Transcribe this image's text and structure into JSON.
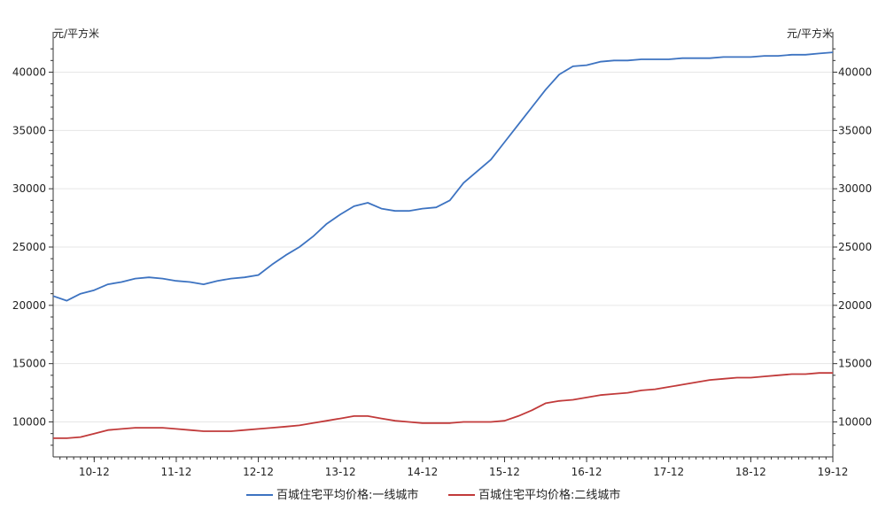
{
  "chart_data": {
    "type": "line",
    "y_unit_left": "元/平方米",
    "y_unit_right": "元/平方米",
    "ylim": [
      7000,
      43000
    ],
    "y_ticks": [
      10000,
      15000,
      20000,
      25000,
      30000,
      35000,
      40000
    ],
    "y_tick_labels": [
      "10000",
      "15000",
      "20000",
      "25000",
      "30000",
      "35000",
      "40000"
    ],
    "xlim": [
      "2010-06",
      "2019-12"
    ],
    "x_ticks": [
      "2010-12",
      "2011-12",
      "2012-12",
      "2013-12",
      "2014-12",
      "2015-12",
      "2016-12",
      "2017-12",
      "2018-12",
      "2019-12"
    ],
    "x_tick_labels": [
      "10-12",
      "11-12",
      "12-12",
      "13-12",
      "14-12",
      "15-12",
      "16-12",
      "17-12",
      "18-12",
      "19-12"
    ],
    "grid": "horizontal",
    "legend_position": "bottom",
    "series": [
      {
        "name": "百城住宅平均价格:一线城市",
        "color": "#3d73c1",
        "x": [
          "2010-06",
          "2010-08",
          "2010-09",
          "2010-10",
          "2010-12",
          "2011-02",
          "2011-04",
          "2011-06",
          "2011-08",
          "2011-10",
          "2011-12",
          "2012-02",
          "2012-04",
          "2012-06",
          "2012-08",
          "2012-10",
          "2012-12",
          "2013-02",
          "2013-04",
          "2013-06",
          "2013-08",
          "2013-10",
          "2013-12",
          "2014-02",
          "2014-04",
          "2014-06",
          "2014-08",
          "2014-10",
          "2014-12",
          "2015-02",
          "2015-04",
          "2015-06",
          "2015-08",
          "2015-10",
          "2015-12",
          "2016-02",
          "2016-04",
          "2016-06",
          "2016-08",
          "2016-10",
          "2016-12",
          "2017-02",
          "2017-04",
          "2017-06",
          "2017-08",
          "2017-10",
          "2017-12",
          "2018-02",
          "2018-04",
          "2018-06",
          "2018-08",
          "2018-10",
          "2018-12",
          "2019-02",
          "2019-04",
          "2019-06",
          "2019-08",
          "2019-10",
          "2019-12"
        ],
        "values": [
          20800,
          20400,
          20700,
          21000,
          21300,
          21800,
          22000,
          22300,
          22400,
          22300,
          22100,
          22000,
          21800,
          22100,
          22300,
          22400,
          22600,
          23500,
          24300,
          25000,
          25900,
          27000,
          27800,
          28500,
          28800,
          28300,
          28100,
          28100,
          28300,
          28400,
          29000,
          30500,
          31500,
          32500,
          34000,
          35500,
          37000,
          38500,
          39800,
          40500,
          40600,
          40900,
          41000,
          41000,
          41100,
          41100,
          41100,
          41200,
          41200,
          41200,
          41300,
          41300,
          41300,
          41400,
          41400,
          41500,
          41500,
          41600,
          41700
        ]
      },
      {
        "name": "百城住宅平均价格:二线城市",
        "color": "#c13a3a",
        "x": [
          "2010-06",
          "2010-08",
          "2010-10",
          "2010-12",
          "2011-02",
          "2011-04",
          "2011-06",
          "2011-08",
          "2011-10",
          "2011-12",
          "2012-02",
          "2012-04",
          "2012-06",
          "2012-08",
          "2012-10",
          "2012-12",
          "2013-02",
          "2013-04",
          "2013-06",
          "2013-08",
          "2013-10",
          "2013-12",
          "2014-02",
          "2014-04",
          "2014-06",
          "2014-08",
          "2014-10",
          "2014-12",
          "2015-02",
          "2015-04",
          "2015-06",
          "2015-08",
          "2015-10",
          "2015-12",
          "2016-02",
          "2016-04",
          "2016-06",
          "2016-08",
          "2016-10",
          "2016-12",
          "2017-02",
          "2017-04",
          "2017-06",
          "2017-08",
          "2017-10",
          "2017-12",
          "2018-02",
          "2018-04",
          "2018-06",
          "2018-08",
          "2018-10",
          "2018-12",
          "2019-02",
          "2019-04",
          "2019-06",
          "2019-08",
          "2019-10",
          "2019-12"
        ],
        "values": [
          8600,
          8600,
          8700,
          9000,
          9300,
          9400,
          9500,
          9500,
          9500,
          9400,
          9300,
          9200,
          9200,
          9200,
          9300,
          9400,
          9500,
          9600,
          9700,
          9900,
          10100,
          10300,
          10500,
          10500,
          10300,
          10100,
          10000,
          9900,
          9900,
          9900,
          10000,
          10000,
          10000,
          10100,
          10500,
          11000,
          11600,
          11800,
          11900,
          12100,
          12300,
          12400,
          12500,
          12700,
          12800,
          13000,
          13200,
          13400,
          13600,
          13700,
          13800,
          13800,
          13900,
          14000,
          14100,
          14100,
          14200,
          14200
        ]
      }
    ]
  }
}
